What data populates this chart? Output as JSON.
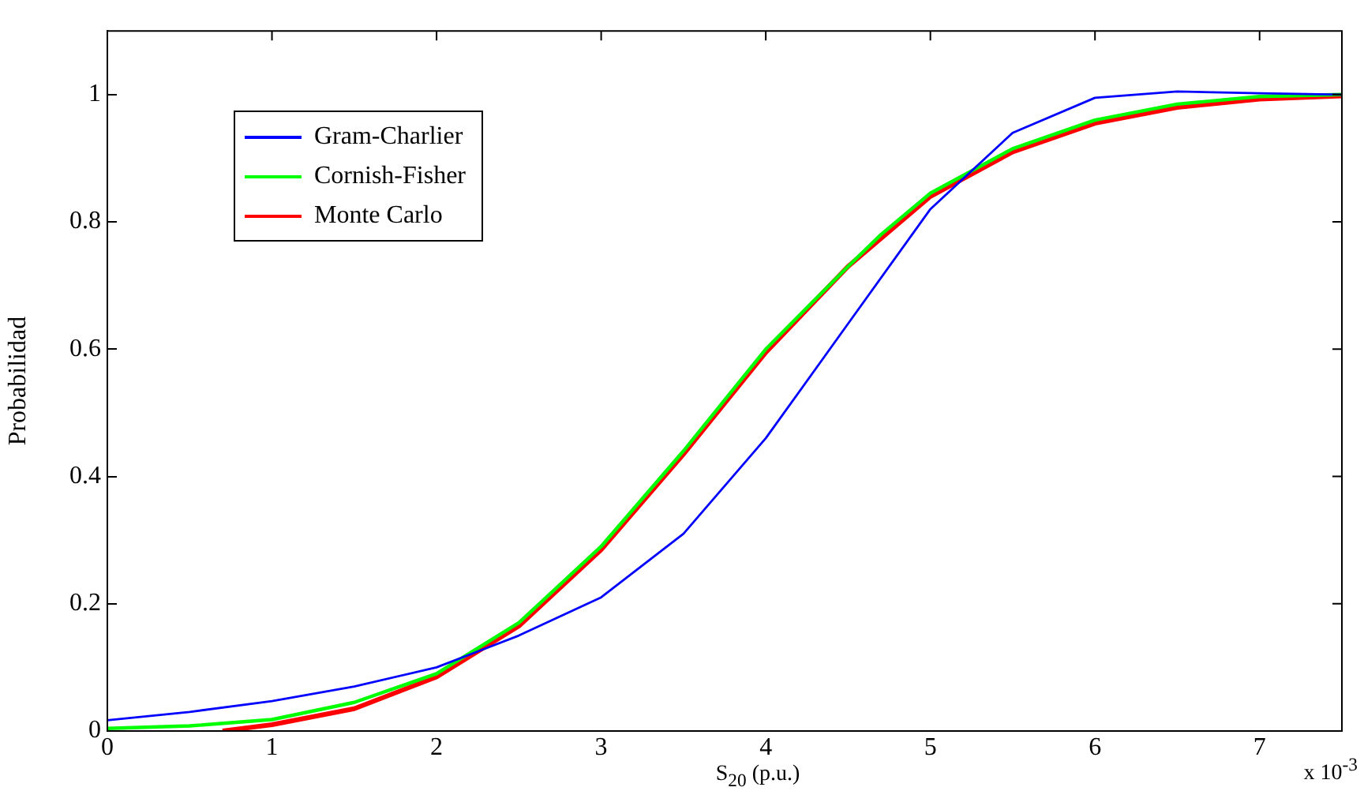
{
  "chart_data": {
    "type": "line",
    "xlabel": "S$_{20}$ (p.u.)",
    "ylabel": "Probabilidad",
    "annotations": [
      "x 10$^{-3}$"
    ],
    "xlim": [
      0,
      7.5
    ],
    "xticks": [
      0,
      1,
      2,
      3,
      4,
      5,
      6,
      7
    ],
    "ylim": [
      0,
      1.1
    ],
    "yticks": [
      0,
      0.2,
      0.4,
      0.6,
      0.8,
      1
    ],
    "legend": "top left",
    "grid": false,
    "marker": "none",
    "line_style": "solid",
    "series": [
      {
        "name": "Gram-Charlier",
        "color": "#0000ff",
        "x": [
          0,
          0.5,
          1,
          1.5,
          2,
          2.3,
          2.5,
          3,
          3.5,
          4,
          4.5,
          5,
          5.5,
          6,
          6.5,
          7,
          7.5
        ],
        "values": [
          0.017,
          0.03,
          0.047,
          0.07,
          0.1,
          0.13,
          0.15,
          0.21,
          0.31,
          0.46,
          0.64,
          0.82,
          0.94,
          0.995,
          1.005,
          1.002,
          1.0
        ]
      },
      {
        "name": "Cornish-Fisher",
        "color": "#00ff00",
        "x": [
          0,
          0.5,
          1,
          1.5,
          2,
          2.5,
          3,
          3.5,
          4,
          4.5,
          4.7,
          5,
          5.5,
          6,
          6.5,
          7,
          7.5
        ],
        "values": [
          0.004,
          0.008,
          0.018,
          0.045,
          0.09,
          0.17,
          0.29,
          0.44,
          0.6,
          0.73,
          0.78,
          0.845,
          0.915,
          0.96,
          0.985,
          0.997,
          1.0
        ]
      },
      {
        "name": "Monte Carlo",
        "color": "#ff0000",
        "x": [
          0.7,
          1,
          1.5,
          2,
          2.5,
          3,
          3.5,
          4,
          4.5,
          5,
          5.5,
          6,
          6.5,
          7,
          7.5
        ],
        "values": [
          0,
          0.01,
          0.035,
          0.085,
          0.165,
          0.285,
          0.435,
          0.595,
          0.73,
          0.84,
          0.91,
          0.955,
          0.98,
          0.993,
          0.998
        ]
      }
    ]
  }
}
